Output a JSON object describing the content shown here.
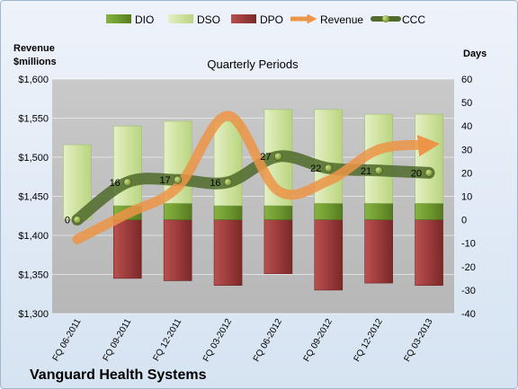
{
  "chart_data": {
    "type": "bar",
    "title": "Quarterly Periods",
    "company": "Vanguard Health Systems",
    "left_axis_label": [
      "Revenue",
      "$millions"
    ],
    "right_axis_label": "Days",
    "categories": [
      "FQ 06-2011",
      "FQ 09-2011",
      "FQ 12-2011",
      "FQ 03-2012",
      "FQ 06-2012",
      "FQ 09-2012",
      "FQ 12-2012",
      "FQ 03-2013"
    ],
    "left_axis": {
      "min": 1300,
      "max": 1600,
      "step": 50
    },
    "right_axis": {
      "min": -40,
      "max": 60,
      "step": 10
    },
    "left_ticks": [
      "$1,300",
      "$1,350",
      "$1,400",
      "$1,450",
      "$1,500",
      "$1,550",
      "$1,600"
    ],
    "right_ticks": [
      "-40",
      "-30",
      "-20",
      "-10",
      "0",
      "10",
      "20",
      "30",
      "40",
      "50",
      "60"
    ],
    "legend": [
      "DIO",
      "DSO",
      "DPO",
      "Revenue",
      "CCC"
    ],
    "colors": {
      "DIO": "#6f9a30",
      "DSO": "#d2e6a6",
      "DPO": "#9c3b3c",
      "Revenue": "#ec9447",
      "CCC": "#4f6a2a",
      "plot_bg": "#c0c0c0"
    },
    "series": [
      {
        "name": "DIO",
        "axis": "right",
        "values": [
          0,
          6,
          7,
          6,
          6,
          7,
          7,
          7
        ]
      },
      {
        "name": "DSO",
        "axis": "right",
        "values": [
          32,
          34,
          35,
          36,
          41,
          40,
          38,
          38
        ]
      },
      {
        "name": "DPO",
        "axis": "right",
        "values": [
          0,
          -25,
          -26,
          -28,
          -23,
          -30,
          -27,
          -28
        ]
      },
      {
        "name": "Revenue",
        "axis": "left",
        "values": [
          1395,
          1428,
          1462,
          1553,
          1457,
          1470,
          1510,
          1516
        ]
      },
      {
        "name": "CCC",
        "axis": "right",
        "values": [
          0,
          16,
          17,
          16,
          27,
          22,
          21,
          20
        ],
        "labels": [
          "0",
          "16",
          "17",
          "16",
          "27",
          "22",
          "21",
          "20"
        ]
      }
    ]
  }
}
